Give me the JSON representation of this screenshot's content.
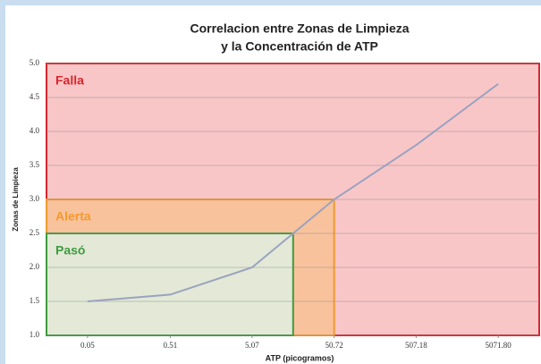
{
  "chart_data": {
    "type": "line",
    "title": [
      "Correlacion entre Zonas de Limpieza",
      "y la Concentración de ATP"
    ],
    "x_label": "ATP  (picogramos)",
    "y_label": "Zonas de Limpieza",
    "x_scale": "log",
    "xlim": [
      0.0158,
      16038
    ],
    "xticks": [
      0.05,
      0.51,
      5.07,
      50.72,
      507.18,
      {
        "value": 5071.8,
        "label": "5071.80"
      }
    ],
    "ylim": [
      1,
      5
    ],
    "yticks": [
      {
        "value": 1,
        "label": "1.0"
      },
      1.5,
      {
        "value": 2,
        "label": "2.0"
      },
      2.5,
      {
        "value": 3,
        "label": "3.0"
      },
      3.5,
      {
        "value": 4,
        "label": "4.0"
      },
      4.5,
      {
        "value": 5,
        "label": "5.0"
      }
    ],
    "grid": true,
    "zones": [
      {
        "name": "Falla",
        "fill": "#f9c6c8",
        "color": "#d8262c"
      },
      {
        "name": "Alerta",
        "x_to": 50.72,
        "y_to": 3.0,
        "fill": "#f8c29c",
        "color": "#f39a2e"
      },
      {
        "name": "Pasó",
        "x_to": 16.04,
        "y_to": 2.5,
        "fill": "#e3e9d6",
        "color": "#3f9b3f"
      }
    ],
    "series": [
      {
        "color": "#9aa3c0",
        "x": [
          0.05,
          0.51,
          5.07,
          16.04,
          50.72,
          507.18,
          5071.8
        ],
        "values": [
          1.5,
          1.6,
          2.0,
          2.5,
          3.0,
          3.8,
          4.7
        ]
      }
    ]
  }
}
